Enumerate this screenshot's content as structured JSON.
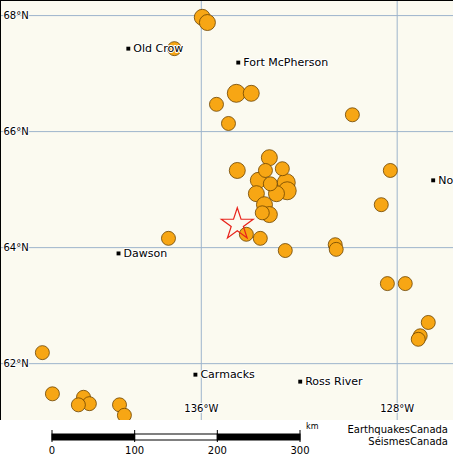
{
  "chart_data": {
    "type": "map",
    "xlim": [
      -144.2,
      -125.7
    ],
    "ylim": [
      61.02,
      68.26
    ],
    "xticks": [
      {
        "value": -136,
        "label": "136°W"
      },
      {
        "value": -128,
        "label": "128°W"
      }
    ],
    "yticks": [
      {
        "value": 62,
        "label": "62°N"
      },
      {
        "value": 64,
        "label": "64°N"
      },
      {
        "value": 66,
        "label": "66°N"
      },
      {
        "value": 68,
        "label": "68°N"
      }
    ],
    "grid": true,
    "events": {
      "color": "#f7a614",
      "marker": "circle",
      "lon": [
        -135.96,
        -135.75,
        -137.1,
        -133.96,
        -134.57,
        -135.38,
        -134.89,
        -129.83,
        -133.22,
        -134.53,
        -133.38,
        -132.69,
        -133.18,
        -133.67,
        -132.53,
        -133.75,
        -132.93,
        -132.49,
        -133.42,
        -133.51,
        -133.22,
        -133.59,
        -134.16,
        -128.28,
        -128.65,
        -137.34,
        -132.57,
        -130.53,
        -130.49,
        -128.4,
        -127.67,
        -126.73,
        -127.06,
        -127.14,
        -142.49,
        -142.08,
        -140.81,
        -140.57,
        -141.02,
        -139.34,
        -139.14
      ],
      "lat": [
        67.97,
        67.88,
        67.43,
        66.66,
        66.66,
        66.47,
        66.14,
        66.29,
        65.55,
        65.33,
        65.33,
        65.36,
        65.1,
        65.16,
        65.12,
        64.93,
        64.93,
        64.98,
        64.74,
        64.6,
        64.57,
        64.16,
        64.23,
        65.33,
        64.74,
        64.16,
        63.95,
        64.05,
        63.97,
        63.38,
        63.38,
        62.71,
        62.48,
        62.42,
        62.19,
        61.48,
        61.42,
        61.31,
        61.29,
        61.29,
        61.11
      ],
      "sizes": [
        4,
        4,
        3.5,
        4,
        4.5,
        3.5,
        3.5,
        3.5,
        4,
        4,
        3.5,
        3.5,
        3.5,
        4,
        4.5,
        4,
        4,
        4.5,
        4,
        3.5,
        4,
        3.5,
        3.5,
        3.5,
        3.5,
        3.5,
        3.5,
        3.5,
        3.5,
        3.5,
        3.5,
        3.5,
        3.5,
        3.5,
        3.5,
        3.5,
        3.5,
        3.5,
        3.5,
        3.5,
        3.5
      ]
    },
    "epicenter": {
      "lon": -134.53,
      "lat": 64.4,
      "marker": "star",
      "color": "#e8231b"
    },
    "places": {
      "names": [
        "Old Crow",
        "Fort McPherson",
        "Dawson",
        "Carmacks",
        "Ross River",
        "No"
      ],
      "lon": [
        -138.98,
        -134.49,
        -139.38,
        -136.24,
        -131.96,
        -126.53
      ],
      "lat": [
        67.43,
        67.19,
        63.9,
        61.81,
        61.69,
        65.16
      ]
    },
    "scale_bar": {
      "ticks": [
        0,
        100,
        200,
        300
      ],
      "unit": "km"
    },
    "credits": [
      "EarthquakesCanada",
      "SéismesCanada"
    ]
  }
}
